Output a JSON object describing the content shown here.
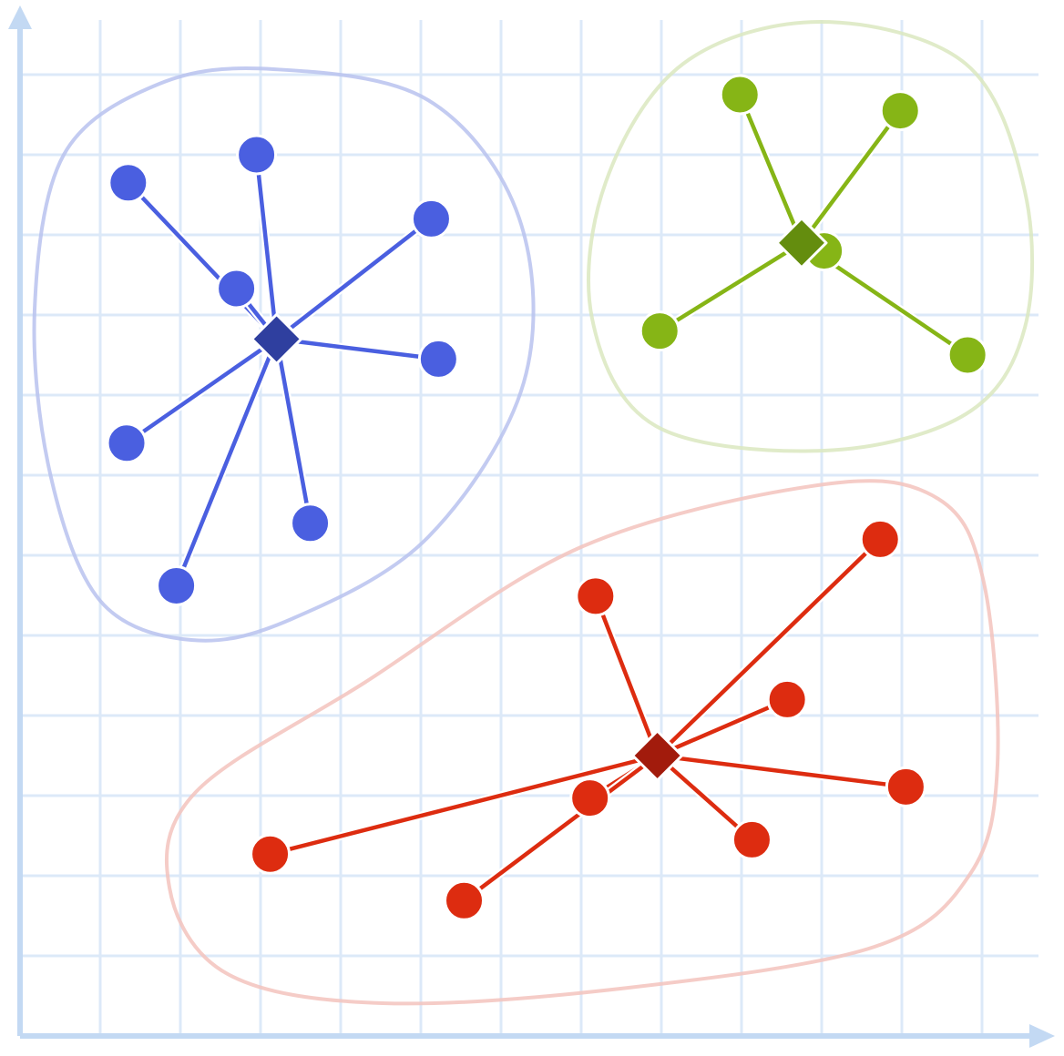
{
  "chart_data": {
    "type": "scatter",
    "title": "",
    "xlabel": "",
    "ylabel": "",
    "xlim": [
      0,
      12.75
    ],
    "ylim": [
      0,
      12.75
    ],
    "grid": true,
    "legend": "none",
    "colors": {
      "grid": "#dce9f8",
      "axis": "#c3d9f3"
    },
    "clusters": [
      {
        "color": "#4a5fe0",
        "centroid_color": "#2f3f9f",
        "hull_color": "#b9c2ef",
        "centroid": {
          "x": 3.2,
          "y": 8.7
        },
        "points": [
          {
            "x": 1.35,
            "y": 10.65
          },
          {
            "x": 2.95,
            "y": 11.0
          },
          {
            "x": 2.7,
            "y": 9.33
          },
          {
            "x": 5.13,
            "y": 10.2
          },
          {
            "x": 5.22,
            "y": 8.45
          },
          {
            "x": 1.33,
            "y": 7.4
          },
          {
            "x": 3.62,
            "y": 6.4
          },
          {
            "x": 1.95,
            "y": 5.62
          }
        ]
      },
      {
        "color": "#86b516",
        "centroid_color": "#648d0e",
        "hull_color": "#dbe8bf",
        "centroid": {
          "x": 9.75,
          "y": 9.9
        },
        "points": [
          {
            "x": 8.98,
            "y": 11.75
          },
          {
            "x": 10.98,
            "y": 11.55
          },
          {
            "x": 10.03,
            "y": 9.8
          },
          {
            "x": 7.98,
            "y": 8.8
          },
          {
            "x": 11.82,
            "y": 8.5
          }
        ]
      },
      {
        "color": "#dd2c10",
        "centroid_color": "#a21b0c",
        "hull_color": "#f3c3bd",
        "centroid": {
          "x": 7.95,
          "y": 3.5
        },
        "points": [
          {
            "x": 10.73,
            "y": 6.2
          },
          {
            "x": 7.18,
            "y": 5.49
          },
          {
            "x": 9.57,
            "y": 4.2
          },
          {
            "x": 11.05,
            "y": 3.11
          },
          {
            "x": 7.11,
            "y": 2.97
          },
          {
            "x": 9.13,
            "y": 2.45
          },
          {
            "x": 3.12,
            "y": 2.27
          },
          {
            "x": 5.54,
            "y": 1.69
          }
        ]
      }
    ]
  }
}
